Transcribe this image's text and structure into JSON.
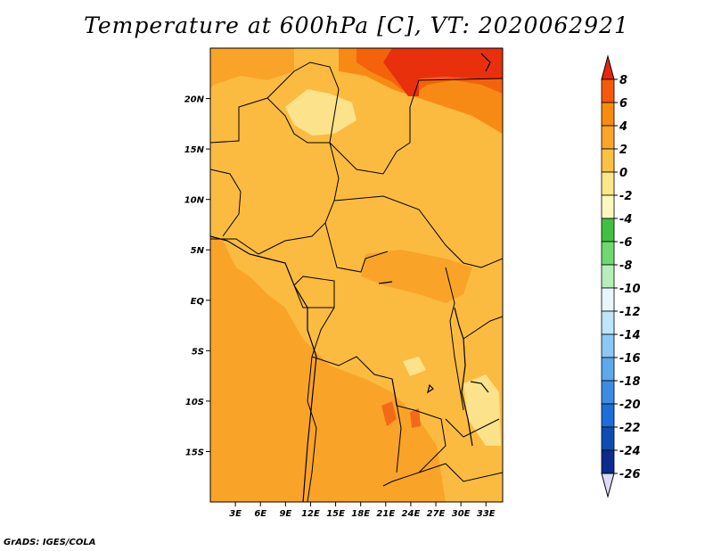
{
  "title": "Temperature at 600hPa [C], VT: 2020062921",
  "credit": "GrADS: IGES/COLA",
  "map": {
    "lon_range": [
      0,
      35
    ],
    "lat_range": [
      -20,
      25
    ],
    "lat_labels": [
      {
        "lat": 20,
        "text": "20N"
      },
      {
        "lat": 15,
        "text": "15N"
      },
      {
        "lat": 10,
        "text": "10N"
      },
      {
        "lat": 5,
        "text": "5N"
      },
      {
        "lat": 0,
        "text": "EQ"
      },
      {
        "lat": -5,
        "text": "5S"
      },
      {
        "lat": -10,
        "text": "10S"
      },
      {
        "lat": -15,
        "text": "15S"
      }
    ],
    "lon_labels": [
      {
        "lon": 3,
        "text": "3E"
      },
      {
        "lon": 6,
        "text": "6E"
      },
      {
        "lon": 9,
        "text": "9E"
      },
      {
        "lon": 12,
        "text": "12E"
      },
      {
        "lon": 15,
        "text": "15E"
      },
      {
        "lon": 18,
        "text": "18E"
      },
      {
        "lon": 21,
        "text": "21E"
      },
      {
        "lon": 24,
        "text": "24E"
      },
      {
        "lon": 27,
        "text": "27E"
      },
      {
        "lon": 30,
        "text": "30E"
      },
      {
        "lon": 33,
        "text": "33E"
      }
    ]
  },
  "colorbar": {
    "labels": [
      "8",
      "6",
      "4",
      "2",
      "0",
      "-2",
      "-4",
      "-6",
      "-8",
      "-10",
      "-12",
      "-14",
      "-16",
      "-18",
      "-20",
      "-22",
      "-24",
      "-26"
    ],
    "colors": [
      "#e8260c",
      "#f55a0a",
      "#f88c0e",
      "#fba52a",
      "#fbc144",
      "#fce68a",
      "#fdf8be",
      "#40c040",
      "#70d870",
      "#b8efb8",
      "#e6f7fb",
      "#bfe4fb",
      "#8cc7f5",
      "#5ea8ec",
      "#3c8ce6",
      "#1e6ed8",
      "#0c4cb4",
      "#0a2c8c",
      "#10126e",
      "#dcdcf5"
    ]
  }
}
